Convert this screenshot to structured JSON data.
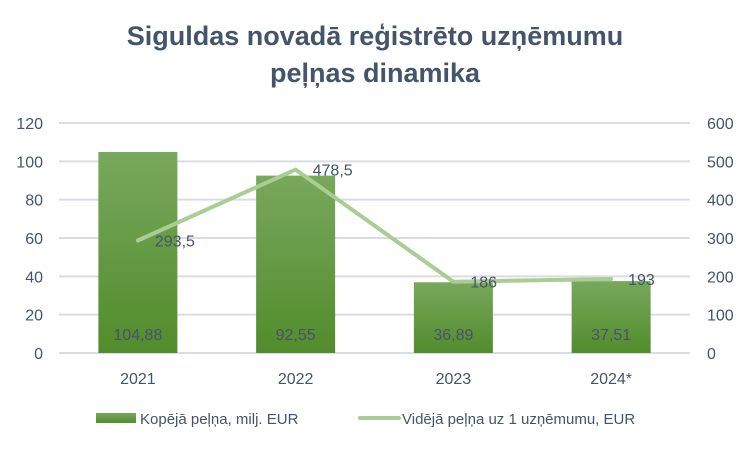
{
  "chart_data": {
    "type": "bar+line",
    "title_line1": "Siguldas novadā reģistrēto uzņēmumu",
    "title_line2": "peļņas dinamika",
    "categories": [
      "2021",
      "2022",
      "2023",
      "2024*"
    ],
    "series": [
      {
        "name": "Kopējā peļņa, milj. EUR",
        "type": "bar",
        "axis": "left",
        "values": [
          104.88,
          92.55,
          36.89,
          37.51
        ],
        "labels": [
          "104,88",
          "92,55",
          "36,89",
          "37,51"
        ],
        "color": "#5e9a36"
      },
      {
        "name": "Vidējā peļņa uz 1 uzņēmumu, EUR",
        "type": "line",
        "axis": "right",
        "values": [
          293.5,
          478.5,
          186,
          193
        ],
        "labels": [
          "293,5",
          "478,5",
          "186",
          "193"
        ],
        "color": "#a9cd92"
      }
    ],
    "y_left": {
      "min": 0,
      "max": 120,
      "ticks": [
        "0",
        "20",
        "40",
        "60",
        "80",
        "100",
        "120"
      ]
    },
    "y_right": {
      "min": 0,
      "max": 600,
      "ticks": [
        "0",
        "100",
        "200",
        "300",
        "400",
        "500",
        "600"
      ]
    },
    "grid": true,
    "legend": "bottom"
  }
}
